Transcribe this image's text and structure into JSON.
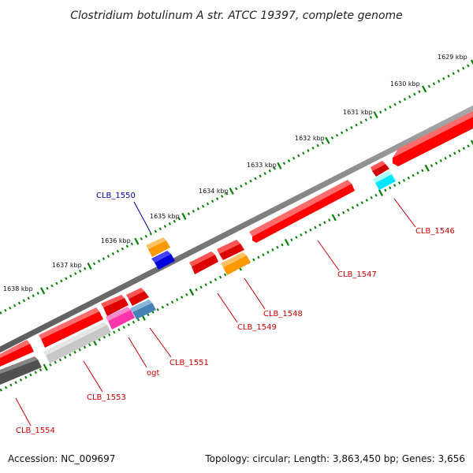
{
  "title": "Clostridium botulinum A str. ATCC 19397, complete genome",
  "footer": {
    "accession": "Accession: NC_009697",
    "summary": "Topology: circular; Length: 3,863,450 bp; Genes: 3,656"
  },
  "scale": {
    "tick_labels": [
      "1629 kbp",
      "1630 kbp",
      "1631 kbp",
      "1632 kbp",
      "1633 kbp",
      "1634 kbp",
      "1635 kbp",
      "1636 kbp",
      "1637 kbp",
      "1638 kbp"
    ]
  },
  "gene_labels": [
    "CLB_1546",
    "CLB_1547",
    "CLB_1548",
    "CLB_1549",
    "CLB_1550",
    "CLB_1551",
    "ogt",
    "CLB_1553",
    "CLB_1554"
  ],
  "colors": {
    "label_red": "#cc0000",
    "label_blue": "#0000aa",
    "gene_red": "#ff0000",
    "gene_orange": "#ff9900",
    "gene_blue": "#0000dd",
    "gene_cyan": "#00ffff",
    "gene_magenta": "#ff33aa",
    "gene_steel": "#4682b4",
    "gene_lightgray": "#c8c8c8",
    "gene_darkgray": "#505050",
    "tick_green": "#008000",
    "backbone": "#808080"
  }
}
